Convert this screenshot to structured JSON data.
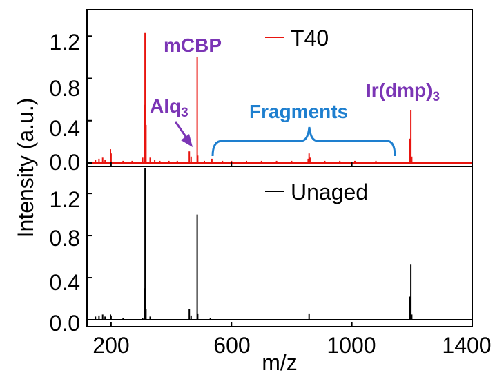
{
  "chart_data": [
    {
      "type": "line",
      "panel": "top",
      "xlabel": "",
      "ylabel": "Intensity (a.u.)",
      "xlim": [
        120,
        1400
      ],
      "ylim": [
        -0.03,
        1.45
      ],
      "y_ticks": [
        "0.0",
        "0.4",
        "0.8",
        "1.2"
      ],
      "y_tick_values": [
        0.0,
        0.4,
        0.8,
        1.2
      ],
      "legend": {
        "label": "T40",
        "position": "top-center"
      },
      "series": [
        {
          "name": "T40",
          "color": "#e8150f",
          "peaks": [
            [
              148,
              0.03
            ],
            [
              160,
              0.04
            ],
            [
              172,
              0.05
            ],
            [
              180,
              0.03
            ],
            [
              198,
              0.13
            ],
            [
              200,
              0.09
            ],
            [
              240,
              0.02
            ],
            [
              270,
              0.02
            ],
            [
              305,
              0.05
            ],
            [
              311,
              0.55
            ],
            [
              313,
              1.23
            ],
            [
              316,
              0.36
            ],
            [
              330,
              0.05
            ],
            [
              345,
              0.03
            ],
            [
              362,
              0.02
            ],
            [
              392,
              0.02
            ],
            [
              420,
              0.02
            ],
            [
              460,
              0.11
            ],
            [
              466,
              0.06
            ],
            [
              486,
              1.0
            ],
            [
              488,
              0.07
            ],
            [
              510,
              0.02
            ],
            [
              535,
              0.04
            ],
            [
              570,
              0.02
            ],
            [
              600,
              0.02
            ],
            [
              650,
              0.02
            ],
            [
              700,
              0.02
            ],
            [
              750,
              0.02
            ],
            [
              800,
              0.02
            ],
            [
              855,
              0.04
            ],
            [
              858,
              0.09
            ],
            [
              861,
              0.05
            ],
            [
              910,
              0.02
            ],
            [
              960,
              0.02
            ],
            [
              1010,
              0.02
            ],
            [
              1080,
              0.02
            ],
            [
              1193,
              0.23
            ],
            [
              1196,
              0.5
            ],
            [
              1199,
              0.06
            ]
          ]
        }
      ],
      "annotations": {
        "mcbp": "mCBP",
        "alq_base": "Alq",
        "alq_sub": "3",
        "ir_base": "Ir(dmp)",
        "ir_sub": "3",
        "fragments": "Fragments"
      }
    },
    {
      "type": "line",
      "panel": "bottom",
      "xlabel": "m/z",
      "ylabel": "",
      "xlim": [
        120,
        1400
      ],
      "ylim": [
        -0.03,
        1.45
      ],
      "x_ticks": [
        "200",
        "600",
        "1000",
        "1400"
      ],
      "x_tick_values": [
        200,
        600,
        1000,
        1400
      ],
      "y_ticks": [
        "0.0",
        "0.4",
        "0.8",
        "1.2"
      ],
      "y_tick_values": [
        0.0,
        0.4,
        0.8,
        1.2
      ],
      "legend": {
        "label": "Unaged",
        "position": "top-center"
      },
      "series": [
        {
          "name": "Unaged",
          "color": "#000000",
          "peaks": [
            [
              148,
              0.03
            ],
            [
              160,
              0.04
            ],
            [
              172,
              0.05
            ],
            [
              180,
              0.03
            ],
            [
              198,
              0.05
            ],
            [
              200,
              0.04
            ],
            [
              240,
              0.02
            ],
            [
              305,
              0.02
            ],
            [
              311,
              0.3
            ],
            [
              313,
              1.45
            ],
            [
              316,
              0.1
            ],
            [
              330,
              0.03
            ],
            [
              460,
              0.1
            ],
            [
              466,
              0.04
            ],
            [
              486,
              1.0
            ],
            [
              488,
              0.06
            ],
            [
              530,
              0.02
            ],
            [
              858,
              0.06
            ],
            [
              1193,
              0.22
            ],
            [
              1196,
              0.53
            ],
            [
              1199,
              0.05
            ]
          ]
        }
      ]
    }
  ],
  "colors": {
    "annotation_purple": "#7b35b5",
    "annotation_blue": "#1e7fcf"
  }
}
